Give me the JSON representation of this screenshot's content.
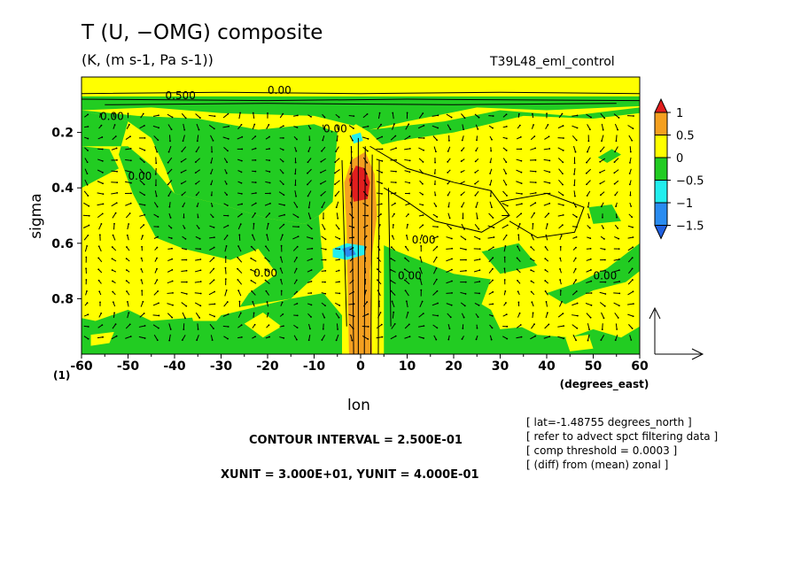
{
  "chart_data": {
    "type": "heatmap",
    "title": "T (U, −OMG) composite",
    "subtitle": "(K, (m s-1, Pa s-1))",
    "run_label": "T39L48_eml_control",
    "xlabel": "lon",
    "xunit_label": "(degrees_east)",
    "ylabel": "sigma",
    "y_axis_extra": "(1)",
    "xlim": [
      -60,
      60
    ],
    "ylim": [
      1.0,
      0.0
    ],
    "x_ticks": [
      -60,
      -50,
      -40,
      -30,
      -20,
      -10,
      0,
      10,
      20,
      30,
      40,
      50,
      60
    ],
    "y_ticks": [
      0.2,
      0.4,
      0.6,
      0.8
    ],
    "colorbar": {
      "levels": [
        "1",
        "0.5",
        "0",
        "−0.5",
        "−1",
        "−1.5"
      ],
      "colors": [
        "#e21e1e",
        "#f4a020",
        "#ffff00",
        "#22cc22",
        "#22eeee",
        "#2a8cf0",
        "#2060e0"
      ]
    },
    "contour_labels": [
      "0.00",
      "0.00",
      "0.00",
      "0.00",
      "0.00",
      "0.00",
      "0.00",
      "0.00",
      "0.500"
    ],
    "composite_summary": [
      {
        "lon": 0,
        "sigma": 0.4,
        "value": 1.0
      },
      {
        "lon": 0,
        "sigma": 0.55,
        "value": 0.5
      },
      {
        "lon": -3,
        "sigma": 0.63,
        "value": -1.0
      },
      {
        "lon": 0,
        "sigma": 0.22,
        "value": -1.0
      },
      {
        "lon": -25,
        "sigma": 0.5,
        "value": -0.25
      },
      {
        "lon": 20,
        "sigma": 0.3,
        "value": 0.25
      }
    ],
    "reference_vector": {
      "xunit": "3.000E+01",
      "yunit": "4.000E-01"
    }
  },
  "footer": {
    "contour_interval": "CONTOUR INTERVAL = 2.500E-01",
    "units": "XUNIT = 3.000E+01, YUNIT = 4.000E-01"
  },
  "info_lines": [
    "[ lat=-1.48755 degrees_north ]",
    "[ refer to advect spct filtering data ]",
    "[ comp threshold = 0.0003 ]",
    "[ (diff) from (mean) zonal ]"
  ]
}
